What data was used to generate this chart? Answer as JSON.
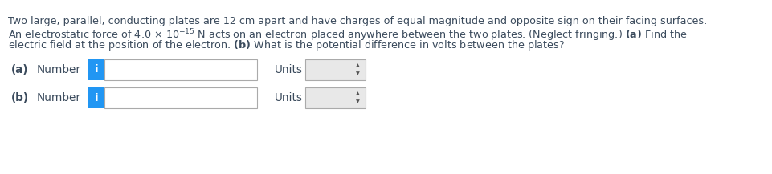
{
  "bg_color": "#ffffff",
  "text_color": "#3a4a5c",
  "blue_color": "#2196F3",
  "box_bg": "#e8e8e8",
  "box_border": "#aaaaaa",
  "font_size_para": 9.2,
  "font_size_ui": 9.8,
  "line1": "Two large, parallel, conducting plates are 12 cm apart and have charges of equal magnitude and opposite sign on their facing surfaces.",
  "line2_pre": "An electrostatic force of 4.0 × 10",
  "line2_exp": "-15",
  "line2_post": " N acts on an electron placed anywhere between the two plates. (Neglect fringing.) ",
  "line2_bold": "(a)",
  "line2_end": " Find the",
  "line3_pre": "electric field at the position of the electron. ",
  "line3_bold": "(b)",
  "line3_end": " What is the potential difference in volts between the plates?",
  "row_a_label": "(a)",
  "row_b_label": "(b)",
  "number_text": "Number",
  "units_text": "Units",
  "i_text": "i"
}
